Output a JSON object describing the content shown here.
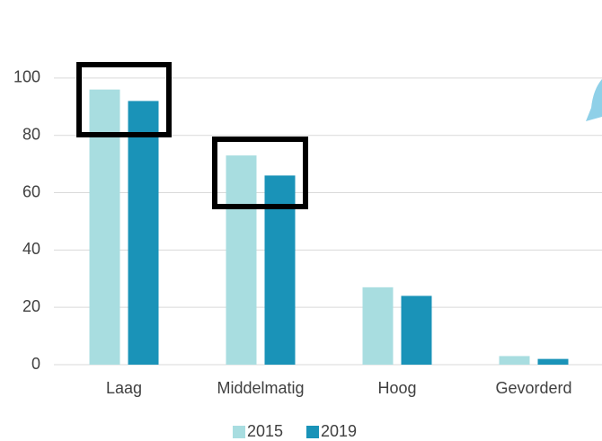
{
  "chart_data": {
    "type": "bar",
    "categories": [
      "Laag",
      "Middelmatig",
      "Hoog",
      "Gevorderd"
    ],
    "series": [
      {
        "name": "2015",
        "color": "#a8dde0",
        "values": [
          96,
          73,
          27,
          3
        ]
      },
      {
        "name": "2019",
        "color": "#1a93b8",
        "values": [
          92,
          66,
          24,
          2
        ]
      }
    ],
    "ylim": [
      0,
      110
    ],
    "yticks": [
      0,
      20,
      40,
      60,
      80,
      100
    ],
    "grid": true,
    "legend": "bottom"
  }
}
